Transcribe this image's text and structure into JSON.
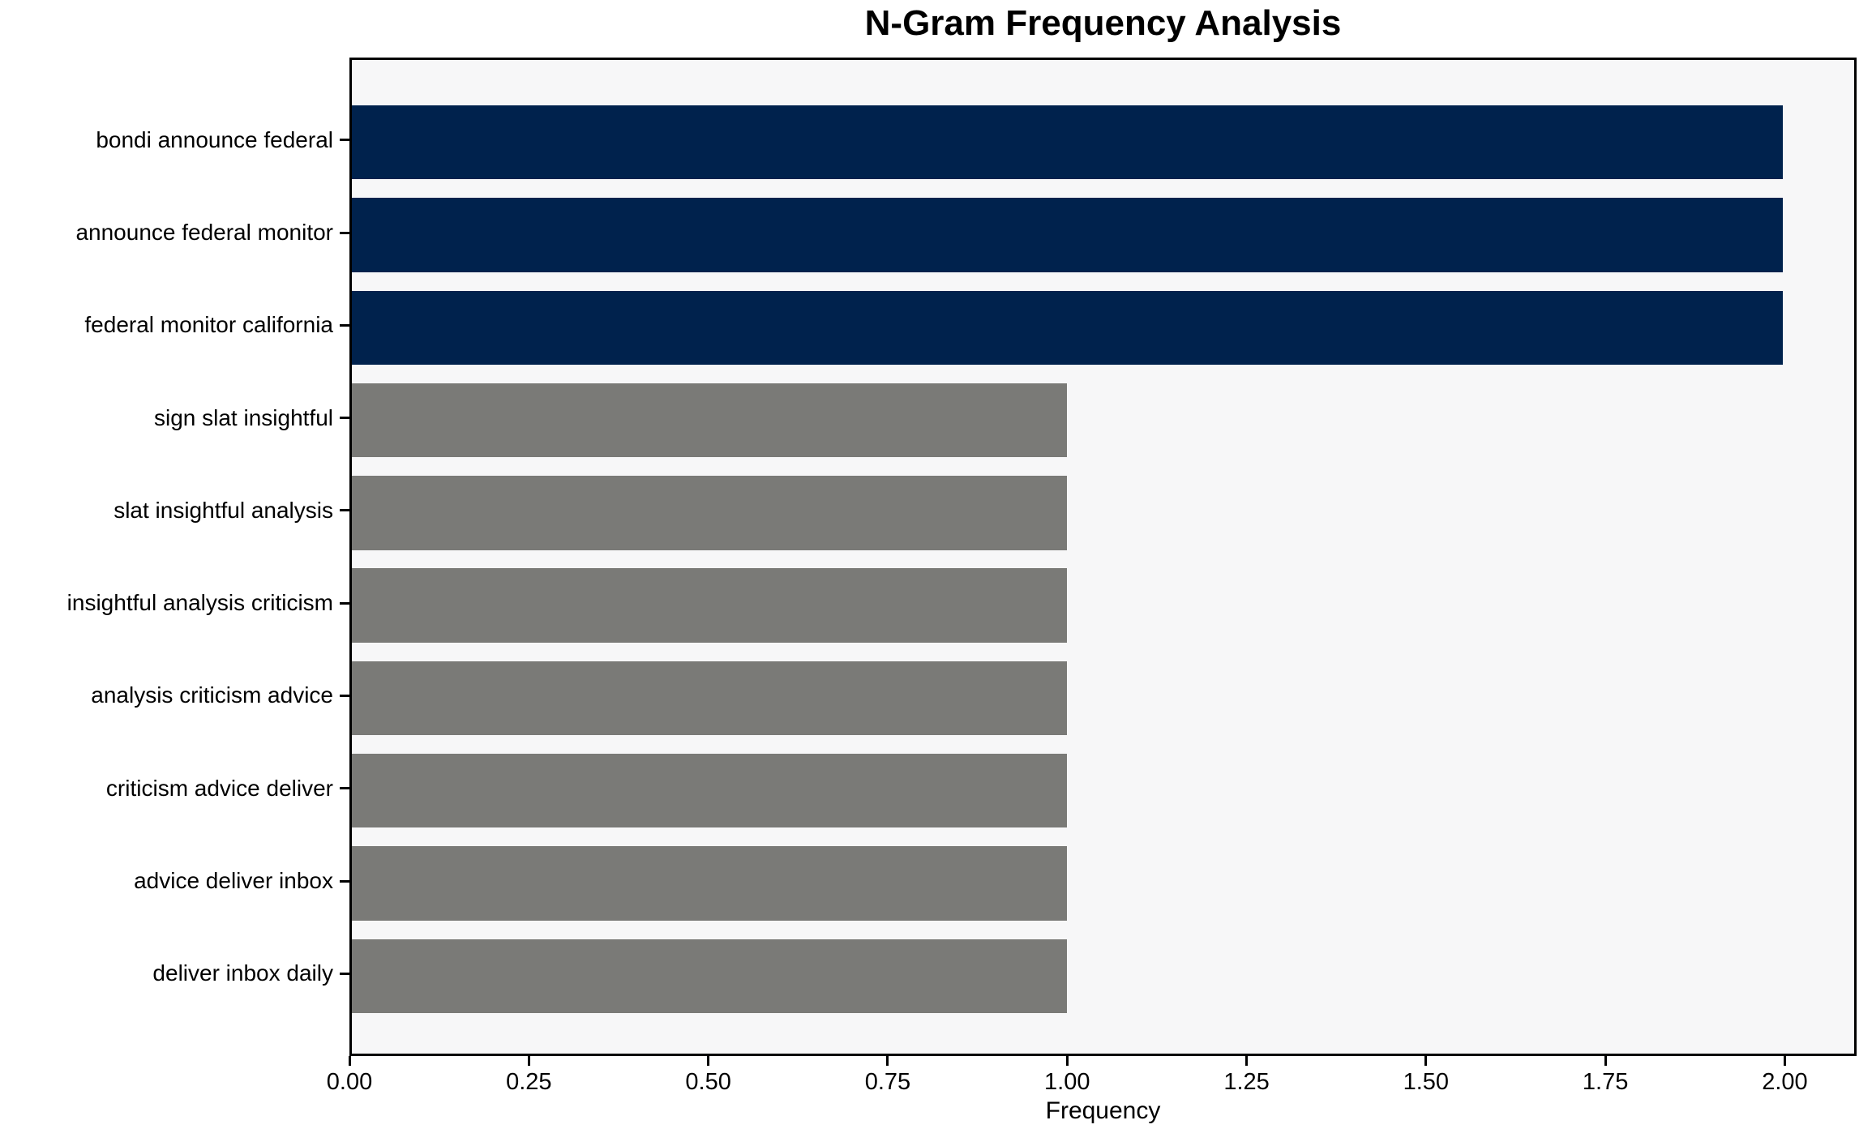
{
  "chart_data": {
    "type": "bar",
    "orientation": "horizontal",
    "title": "N-Gram Frequency Analysis",
    "xlabel": "Frequency",
    "ylabel": "",
    "categories": [
      "bondi announce federal",
      "announce federal monitor",
      "federal monitor california",
      "sign slat insightful",
      "slat insightful analysis",
      "insightful analysis criticism",
      "analysis criticism advice",
      "criticism advice deliver",
      "advice deliver inbox",
      "deliver inbox daily"
    ],
    "values": [
      2,
      2,
      2,
      1,
      1,
      1,
      1,
      1,
      1,
      1
    ],
    "bar_colors": [
      "#00224d",
      "#00224d",
      "#00224d",
      "#7a7a77",
      "#7a7a77",
      "#7a7a77",
      "#7a7a77",
      "#7a7a77",
      "#7a7a77",
      "#7a7a77"
    ],
    "xlim": [
      0,
      2.1
    ],
    "xticks": [
      0,
      0.25,
      0.5,
      0.75,
      1,
      1.25,
      1.5,
      1.75,
      2
    ],
    "xtick_labels": [
      "0.00",
      "0.25",
      "0.50",
      "0.75",
      "1.00",
      "1.25",
      "1.50",
      "1.75",
      "2.00"
    ],
    "grid": false,
    "legend": null,
    "plot_background": "#f7f7f8",
    "figure_background": "#ffffff",
    "spine_color": "#000000",
    "highlight_color": "#00224d",
    "base_color": "#7a7a77"
  }
}
